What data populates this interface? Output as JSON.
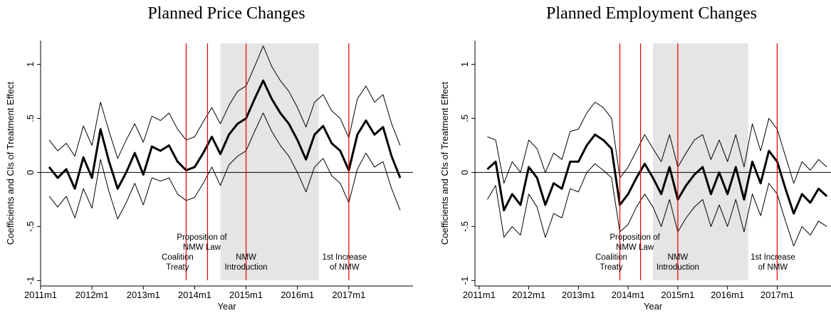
{
  "chart_data": [
    {
      "type": "line",
      "title": "Planned Price Changes",
      "x_label": "Year",
      "y_label": "Coefficients and CIs of Treatment Effect",
      "x": [
        "2011m3",
        "2011m5",
        "2011m7",
        "2011m9",
        "2011m11",
        "2012m1",
        "2012m3",
        "2012m5",
        "2012m7",
        "2012m9",
        "2012m11",
        "2013m1",
        "2013m3",
        "2013m5",
        "2013m7",
        "2013m9",
        "2013m11",
        "2014m1",
        "2014m3",
        "2014m5",
        "2014m7",
        "2014m9",
        "2014m11",
        "2015m1",
        "2015m3",
        "2015m5",
        "2015m7",
        "2015m9",
        "2015m11",
        "2016m1",
        "2016m3",
        "2016m5",
        "2016m7",
        "2016m9",
        "2016m11",
        "2017m1",
        "2017m3",
        "2017m5",
        "2017m7",
        "2017m9",
        "2017m11",
        "2018m1"
      ],
      "series": [
        {
          "color": "#000000",
          "values": [
            0.05,
            -0.05,
            0.03,
            -0.15,
            0.14,
            -0.05,
            0.4,
            0.1,
            -0.15,
            0.0,
            0.18,
            -0.02,
            0.24,
            0.2,
            0.25,
            0.1,
            0.02,
            0.05,
            0.18,
            0.33,
            0.17,
            0.35,
            0.45,
            0.5,
            0.68,
            0.85,
            0.68,
            0.55,
            0.45,
            0.3,
            0.12,
            0.35,
            0.43,
            0.27,
            0.2,
            0.02,
            0.35,
            0.48,
            0.35,
            0.42,
            0.15,
            -0.05
          ]
        },
        {
          "color": "#000000",
          "values": [
            0.3,
            0.2,
            0.27,
            0.15,
            0.43,
            0.25,
            0.65,
            0.38,
            0.13,
            0.3,
            0.45,
            0.28,
            0.52,
            0.48,
            0.55,
            0.4,
            0.3,
            0.33,
            0.47,
            0.6,
            0.45,
            0.62,
            0.75,
            0.8,
            0.98,
            1.17,
            0.98,
            0.85,
            0.75,
            0.6,
            0.42,
            0.65,
            0.72,
            0.57,
            0.5,
            0.32,
            0.68,
            0.8,
            0.65,
            0.72,
            0.45,
            0.25
          ]
        },
        {
          "color": "#000000",
          "values": [
            -0.22,
            -0.32,
            -0.22,
            -0.42,
            -0.15,
            -0.33,
            0.12,
            -0.18,
            -0.43,
            -0.28,
            -0.1,
            -0.3,
            -0.05,
            -0.08,
            -0.05,
            -0.2,
            -0.26,
            -0.23,
            -0.1,
            0.05,
            -0.12,
            0.07,
            0.15,
            0.2,
            0.38,
            0.55,
            0.38,
            0.25,
            0.15,
            0.0,
            -0.18,
            0.05,
            0.13,
            -0.03,
            -0.1,
            -0.28,
            0.03,
            0.18,
            0.05,
            0.1,
            -0.15,
            -0.35
          ]
        }
      ],
      "xlim": [
        "2011m1",
        "2018m4"
      ],
      "xticks": [
        "2011m1",
        "2012m1",
        "2013m1",
        "2014m1",
        "2015m1",
        "2016m1",
        "2017m1"
      ],
      "ylim": [
        -1.05,
        1.22
      ],
      "yticks": [
        {
          "value": -1,
          "label": "-1"
        },
        {
          "value": -0.5,
          "label": "-.5"
        },
        0,
        {
          "value": 0.5,
          "label": ".5"
        },
        1
      ],
      "hline": 0,
      "shade": [
        "2014m7",
        "2016m6"
      ],
      "shade_color": "#e5e5e5",
      "vline_color": "#e00000",
      "vlines": [
        {
          "x": "2013m11",
          "label": [
            "Coalition",
            "Treaty"
          ]
        },
        {
          "x": "2014m4",
          "label": [
            "Proposition of",
            "NMW Law"
          ]
        },
        {
          "x": "2015m1",
          "label": [
            "NMW",
            "Introduction"
          ]
        },
        {
          "x": "2017m1",
          "label": [
            "1st Increase",
            "of NMW"
          ]
        }
      ]
    },
    {
      "type": "line",
      "title": "Planned Employment Changes",
      "x_label": "Year",
      "y_label": "Coefficients and CIs of Treatment Effect",
      "x": [
        "2011m3",
        "2011m5",
        "2011m7",
        "2011m9",
        "2011m11",
        "2012m1",
        "2012m3",
        "2012m5",
        "2012m7",
        "2012m9",
        "2012m11",
        "2013m1",
        "2013m3",
        "2013m5",
        "2013m7",
        "2013m9",
        "2013m11",
        "2014m1",
        "2014m3",
        "2014m5",
        "2014m7",
        "2014m9",
        "2014m11",
        "2015m1",
        "2015m3",
        "2015m5",
        "2015m7",
        "2015m9",
        "2015m11",
        "2016m1",
        "2016m3",
        "2016m5",
        "2016m7",
        "2016m9",
        "2016m11",
        "2017m1",
        "2017m3",
        "2017m5",
        "2017m7",
        "2017m9",
        "2017m11",
        "2018m1"
      ],
      "series": [
        {
          "color": "#000000",
          "values": [
            0.03,
            0.1,
            -0.35,
            -0.2,
            -0.3,
            0.05,
            -0.05,
            -0.3,
            -0.1,
            -0.15,
            0.1,
            0.1,
            0.25,
            0.35,
            0.3,
            0.22,
            -0.3,
            -0.2,
            -0.05,
            0.08,
            -0.05,
            -0.2,
            0.05,
            -0.25,
            -0.12,
            -0.02,
            0.05,
            -0.2,
            0.0,
            -0.2,
            0.05,
            -0.25,
            0.1,
            -0.1,
            0.2,
            0.1,
            -0.15,
            -0.38,
            -0.2,
            -0.28,
            -0.15,
            -0.22
          ]
        },
        {
          "color": "#000000",
          "values": [
            0.33,
            0.3,
            -0.1,
            0.1,
            0.0,
            0.3,
            0.22,
            0.0,
            0.18,
            0.12,
            0.38,
            0.4,
            0.55,
            0.65,
            0.6,
            0.5,
            -0.05,
            0.05,
            0.2,
            0.35,
            0.22,
            0.1,
            0.35,
            0.05,
            0.18,
            0.3,
            0.35,
            0.12,
            0.3,
            0.1,
            0.35,
            0.05,
            0.45,
            0.2,
            0.5,
            0.4,
            0.15,
            -0.1,
            0.1,
            0.02,
            0.12,
            0.05
          ]
        },
        {
          "color": "#000000",
          "values": [
            -0.25,
            -0.12,
            -0.6,
            -0.5,
            -0.58,
            -0.2,
            -0.32,
            -0.6,
            -0.38,
            -0.42,
            -0.15,
            -0.18,
            0.0,
            0.08,
            0.02,
            -0.05,
            -0.55,
            -0.48,
            -0.32,
            -0.2,
            -0.32,
            -0.5,
            -0.25,
            -0.55,
            -0.42,
            -0.32,
            -0.25,
            -0.5,
            -0.3,
            -0.5,
            -0.25,
            -0.55,
            -0.2,
            -0.4,
            -0.1,
            -0.2,
            -0.45,
            -0.68,
            -0.5,
            -0.58,
            -0.45,
            -0.5
          ]
        }
      ],
      "xlim": [
        "2010m12",
        "2018m2"
      ],
      "xticks": [
        "2011m1",
        "2012m1",
        "2013m1",
        "2014m1",
        "2015m1",
        "2016m1",
        "2017m1"
      ],
      "ylim": [
        -1.05,
        1.22
      ],
      "yticks": [
        {
          "value": -1,
          "label": "-1"
        },
        {
          "value": -0.5,
          "label": "-.5"
        },
        0,
        {
          "value": 0.5,
          "label": ".5"
        },
        1
      ],
      "hline": 0,
      "shade": [
        "2014m7",
        "2016m6"
      ],
      "shade_color": "#e5e5e5",
      "vline_color": "#e00000",
      "vlines": [
        {
          "x": "2013m11",
          "label": [
            "Coalition",
            "Treaty"
          ]
        },
        {
          "x": "2014m4",
          "label": [
            "Proposition of",
            "NMW Law"
          ]
        },
        {
          "x": "2015m1",
          "label": [
            "NMW",
            "Introduction"
          ]
        },
        {
          "x": "2017m1",
          "label": [
            "1st Increase",
            "of NMW"
          ]
        }
      ]
    }
  ]
}
